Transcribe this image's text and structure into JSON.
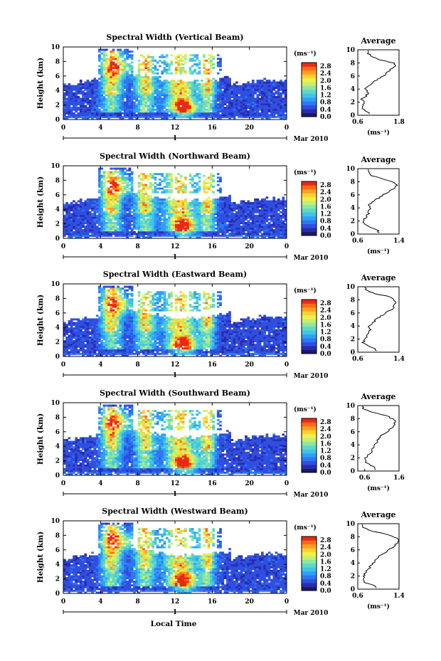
{
  "figure": {
    "bottom_xlabel": "Local Time",
    "date_label": "Mar 2010",
    "day_tick": "1"
  },
  "colormap": [
    "#1a1a66",
    "#2b2bb0",
    "#2f4fe0",
    "#2f78f0",
    "#30a0f5",
    "#3fc4e8",
    "#5ed8c8",
    "#8ee6a0",
    "#c4ee70",
    "#eef04a",
    "#ffd030",
    "#ffa020",
    "#ff6a18",
    "#e82a14"
  ],
  "chart_data": [
    {
      "type": "heatmap",
      "title": "Spectral Width (Vertical Beam)",
      "ylabel": "Height (km)",
      "xlabel": "Local Time",
      "xlim": [
        0,
        24
      ],
      "ylim": [
        0,
        10
      ],
      "xticks": [
        "0",
        "4",
        "8",
        "12",
        "16",
        "20",
        "0"
      ],
      "yticks": [
        "0",
        "2",
        "4",
        "6",
        "8",
        "10"
      ],
      "colorbar": {
        "unit": "(ms⁻¹)",
        "ticks": [
          "0.0",
          "0.4",
          "0.8",
          "1.2",
          "1.6",
          "2.0",
          "2.4",
          "2.8"
        ],
        "range": [
          0,
          3.0
        ]
      },
      "profile": {
        "title": "Average",
        "xlabel": "(ms⁻¹)",
        "xticks": [
          "0.6",
          "1.8"
        ],
        "xlim": [
          0.6,
          1.8
        ],
        "yticks": [
          "0",
          "2",
          "4",
          "6",
          "8",
          "10"
        ],
        "heights": [
          0.5,
          1,
          1.5,
          2,
          2.5,
          3,
          3.5,
          4,
          4.5,
          5,
          5.5,
          6,
          6.5,
          7,
          7.5,
          8,
          8.5,
          9,
          9.5
        ],
        "values": [
          0.9,
          0.72,
          0.75,
          0.78,
          0.72,
          0.85,
          0.9,
          0.8,
          0.95,
          1.0,
          1.2,
          1.35,
          1.45,
          1.55,
          1.7,
          1.65,
          1.2,
          1.0,
          0.9
        ]
      }
    },
    {
      "type": "heatmap",
      "title": "Spectral Width (Northward Beam)",
      "ylabel": "Height (km)",
      "xlabel": "Local Time",
      "xlim": [
        0,
        24
      ],
      "ylim": [
        0,
        10
      ],
      "xticks": [
        "0",
        "4",
        "8",
        "12",
        "16",
        "20",
        "0"
      ],
      "yticks": [
        "0",
        "2",
        "4",
        "6",
        "8",
        "10"
      ],
      "colorbar": {
        "unit": "(ms⁻¹)",
        "ticks": [
          "0.0",
          "0.4",
          "0.8",
          "1.2",
          "1.6",
          "2.0",
          "2.4",
          "2.8"
        ],
        "range": [
          0,
          3.0
        ]
      },
      "profile": {
        "title": "Average",
        "xlabel": "(ms⁻¹)",
        "xticks": [
          "0.6",
          "1.4"
        ],
        "xlim": [
          0.6,
          1.4
        ],
        "yticks": [
          "0",
          "2",
          "4",
          "6",
          "8",
          "10"
        ],
        "heights": [
          0.5,
          1,
          1.5,
          2,
          2.5,
          3,
          3.5,
          4,
          4.5,
          5,
          5.5,
          6,
          6.5,
          7,
          7.5,
          8,
          8.5,
          9,
          9.5
        ],
        "values": [
          1.0,
          0.85,
          0.72,
          0.7,
          0.75,
          0.8,
          0.8,
          0.85,
          0.82,
          0.9,
          1.0,
          1.1,
          1.2,
          1.3,
          1.35,
          1.25,
          1.05,
          0.85,
          0.8
        ]
      }
    },
    {
      "type": "heatmap",
      "title": "Spectral Width (Eastward Beam)",
      "ylabel": "Height (km)",
      "xlabel": "Local Time",
      "xlim": [
        0,
        24
      ],
      "ylim": [
        0,
        10
      ],
      "xticks": [
        "0",
        "4",
        "8",
        "12",
        "16",
        "20",
        "0"
      ],
      "yticks": [
        "0",
        "2",
        "4",
        "6",
        "8",
        "10"
      ],
      "colorbar": {
        "unit": "(ms⁻¹)",
        "ticks": [
          "0.0",
          "0.4",
          "0.8",
          "1.2",
          "1.6",
          "2.0",
          "2.4",
          "2.8"
        ],
        "range": [
          0,
          3.0
        ]
      },
      "profile": {
        "title": "Average",
        "xlabel": "",
        "xticks": [
          "0.6",
          "1.4"
        ],
        "xlim": [
          0.6,
          1.4
        ],
        "yticks": [
          "0",
          "2",
          "4",
          "6",
          "8",
          "10"
        ],
        "heights": [
          0.5,
          1,
          1.5,
          2,
          2.5,
          3,
          3.5,
          4,
          4.5,
          5,
          5.5,
          6,
          6.5,
          7,
          7.5,
          8,
          8.5,
          9,
          9.5
        ],
        "values": [
          0.95,
          0.8,
          0.7,
          0.75,
          0.78,
          0.8,
          0.85,
          0.8,
          0.9,
          0.95,
          1.05,
          1.15,
          1.25,
          1.3,
          1.35,
          1.3,
          1.2,
          0.9,
          0.75
        ]
      }
    },
    {
      "type": "heatmap",
      "title": "Spectral Width (Southward Beam)",
      "ylabel": "Height (km)",
      "xlabel": "Local Time",
      "xlim": [
        0,
        24
      ],
      "ylim": [
        0,
        10
      ],
      "xticks": [
        "0",
        "4",
        "8",
        "12",
        "16",
        "20",
        "0"
      ],
      "yticks": [
        "0",
        "2",
        "4",
        "6",
        "8",
        "10"
      ],
      "colorbar": {
        "unit": "(ms⁻¹)",
        "ticks": [
          "0.0",
          "0.4",
          "0.8",
          "1.2",
          "1.6",
          "2.0",
          "2.4",
          "2.8"
        ],
        "range": [
          0,
          3.0
        ]
      },
      "profile": {
        "title": "Average",
        "xlabel": "(ms⁻¹)",
        "xticks": [
          "0.6",
          "1.6"
        ],
        "xlim": [
          0.4,
          1.6
        ],
        "yticks": [
          "0",
          "2",
          "4",
          "6",
          "8",
          "10"
        ],
        "heights": [
          0.5,
          1,
          1.5,
          2,
          2.5,
          3,
          3.5,
          4,
          4.5,
          5,
          5.5,
          6,
          6.5,
          7,
          7.5,
          8,
          8.5,
          9,
          9.5
        ],
        "values": [
          0.9,
          0.75,
          0.6,
          0.62,
          0.7,
          0.8,
          0.85,
          0.9,
          0.95,
          1.0,
          1.1,
          1.25,
          1.35,
          1.45,
          1.5,
          1.4,
          1.2,
          0.8,
          0.55
        ]
      }
    },
    {
      "type": "heatmap",
      "title": "Spectral Width (Westward Beam)",
      "ylabel": "Height (km)",
      "xlabel": "Local Time",
      "xlim": [
        0,
        24
      ],
      "ylim": [
        0,
        10
      ],
      "xticks": [
        "0",
        "4",
        "8",
        "12",
        "16",
        "20",
        "0"
      ],
      "yticks": [
        "0",
        "2",
        "4",
        "6",
        "8",
        "10"
      ],
      "colorbar": {
        "unit": "(ms⁻¹)",
        "ticks": [
          "0.0",
          "0.4",
          "0.8",
          "1.2",
          "1.6",
          "2.0",
          "2.4",
          "2.8"
        ],
        "range": [
          0,
          3.0
        ]
      },
      "profile": {
        "title": "Average",
        "xlabel": "(ms⁻¹)",
        "xticks": [
          "0.6",
          "1.4"
        ],
        "xlim": [
          0.6,
          1.4
        ],
        "yticks": [
          "0",
          "2",
          "4",
          "6",
          "8",
          "10"
        ],
        "heights": [
          0.5,
          1,
          1.5,
          2,
          2.5,
          3,
          3.5,
          4,
          4.5,
          5,
          5.5,
          6,
          6.5,
          7,
          7.5,
          8,
          8.5,
          9,
          9.5
        ],
        "values": [
          0.95,
          0.75,
          0.7,
          0.72,
          0.75,
          0.8,
          0.85,
          0.9,
          0.95,
          1.0,
          1.1,
          1.2,
          1.3,
          1.35,
          1.4,
          1.3,
          1.1,
          0.8,
          0.7
        ]
      }
    }
  ]
}
